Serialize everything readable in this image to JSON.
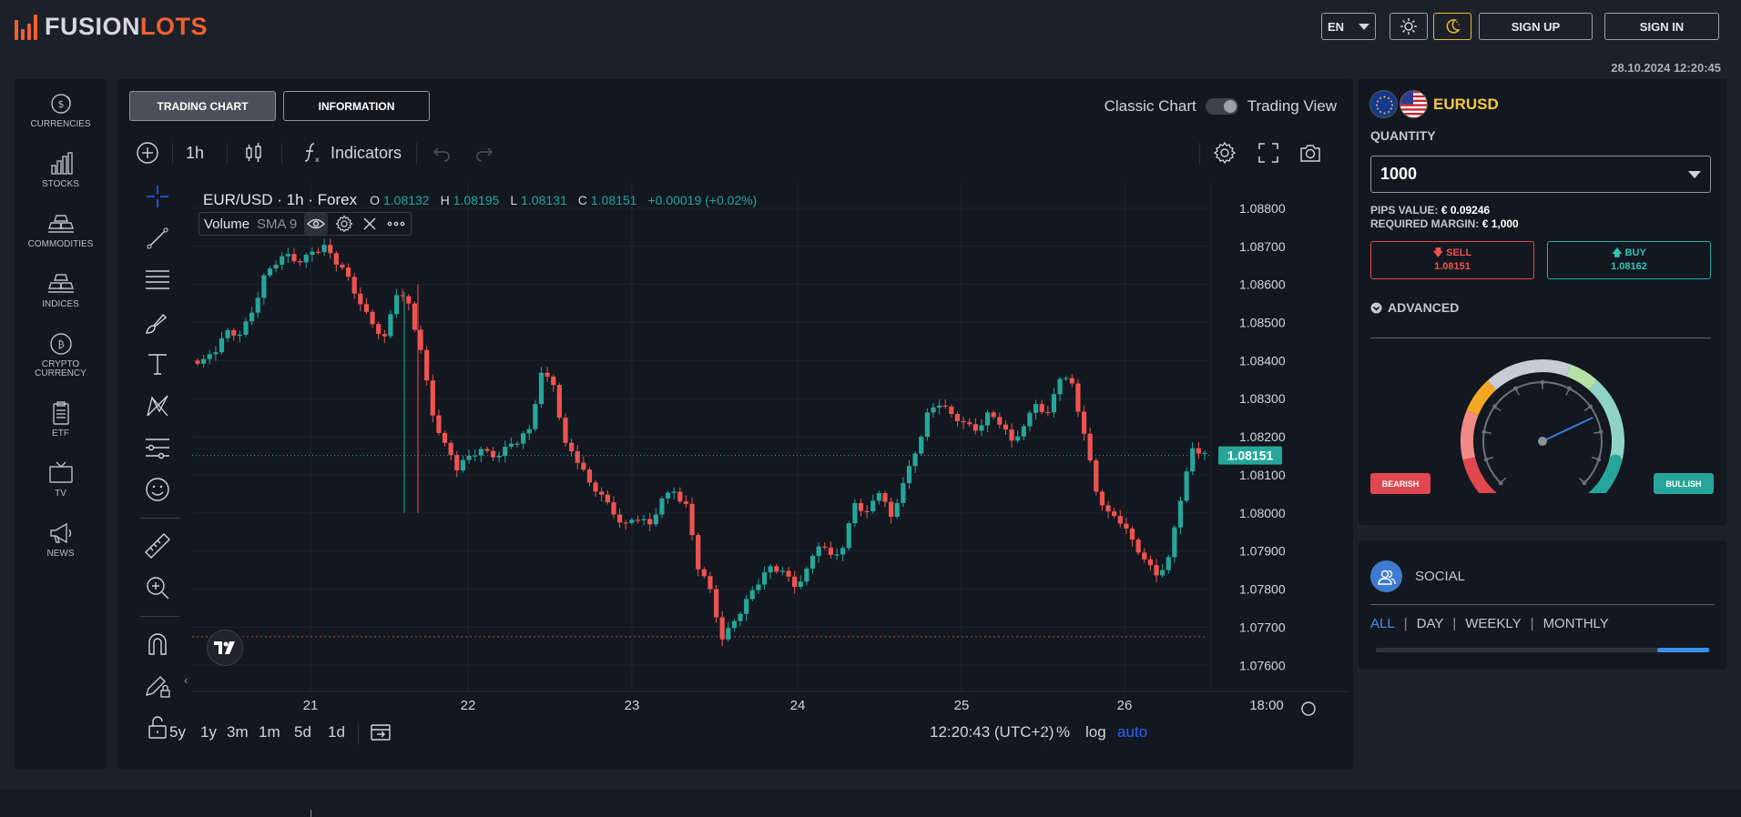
{
  "brand": {
    "part1": "FUSION",
    "part2": "LOTS"
  },
  "header": {
    "language": "EN",
    "sign_up": "SIGN UP",
    "sign_in": "SIGN IN",
    "datetime": "28.10.2024 12:20:45"
  },
  "nav": [
    {
      "label": "CURRENCIES",
      "icon": "currency-coin-icon"
    },
    {
      "label": "STOCKS",
      "icon": "bar-chart-icon"
    },
    {
      "label": "COMMODITIES",
      "icon": "gold-bars-icon"
    },
    {
      "label": "INDICES",
      "icon": "stacked-bars-icon"
    },
    {
      "label": "CRYPTO CURRENCY",
      "icon": "bitcoin-icon"
    },
    {
      "label": "ETF",
      "icon": "clipboard-icon"
    },
    {
      "label": "TV",
      "icon": "tv-icon"
    },
    {
      "label": "NEWS",
      "icon": "megaphone-icon"
    }
  ],
  "tabs": {
    "trading_chart": "TRADING CHART",
    "information": "INFORMATION"
  },
  "view_toggle": {
    "left": "Classic Chart",
    "right": "Trading View"
  },
  "toolbar": {
    "interval": "1h",
    "indicators": "Indicators"
  },
  "legend": {
    "symbol": "EUR/USD · 1h · Forex",
    "o_label": "O",
    "o": "1.08132",
    "h_label": "H",
    "h": "1.08195",
    "l_label": "L",
    "l": "1.08131",
    "c_label": "C",
    "c": "1.08151",
    "change": "+0.00019 (+0.02%)",
    "volume_label": "Volume",
    "volume_sma": "SMA 9"
  },
  "chart_data": {
    "type": "candlestick",
    "symbol": "EUR/USD",
    "interval": "1h",
    "y_ticks": [
      "1.08800",
      "1.08700",
      "1.08600",
      "1.08500",
      "1.08400",
      "1.08300",
      "1.08200",
      "1.08100",
      "1.08000",
      "1.07900",
      "1.07800",
      "1.07700",
      "1.07600"
    ],
    "ylim": [
      1.0756,
      1.0885
    ],
    "x_ticks": [
      "21",
      "22",
      "23",
      "24",
      "25",
      "26",
      "18:00"
    ],
    "last_price": "1.08151",
    "last_price_value": 1.08151,
    "low_line_value": 1.07675,
    "close_path": [
      1.084,
      1.0843,
      1.0848,
      1.0846,
      1.0853,
      1.0862,
      1.0866,
      1.0868,
      1.0865,
      1.0869,
      1.087,
      1.0866,
      1.0862,
      1.0854,
      1.085,
      1.0846,
      1.0858,
      1.0855,
      1.0842,
      1.0826,
      1.0818,
      1.0812,
      1.0815,
      1.0816,
      1.0815,
      1.0817,
      1.0819,
      1.0822,
      1.0836,
      1.0834,
      1.0818,
      1.0814,
      1.0808,
      1.0804,
      1.08,
      1.0797,
      1.0799,
      1.0797,
      1.0803,
      1.0806,
      1.0802,
      1.0786,
      1.078,
      1.0766,
      1.0772,
      1.0777,
      1.0782,
      1.0786,
      1.0784,
      1.0781,
      1.0785,
      1.0792,
      1.0789,
      1.079,
      1.0803,
      1.08,
      1.0806,
      1.0799,
      1.0807,
      1.0816,
      1.0826,
      1.0829,
      1.0826,
      1.0823,
      1.0822,
      1.0826,
      1.0824,
      1.0819,
      1.0822,
      1.0829,
      1.0826,
      1.0836,
      1.0834,
      1.082,
      1.0806,
      1.08,
      1.0798,
      1.0793,
      1.0787,
      1.0784,
      1.0788,
      1.0804,
      1.0817,
      1.0815
    ]
  },
  "ranges": [
    "5y",
    "1y",
    "3m",
    "1m",
    "5d",
    "1d"
  ],
  "bottom": {
    "time": "12:20:43 (UTC+2)",
    "pct": "%",
    "log": "log",
    "auto": "auto"
  },
  "instrument": {
    "pair": "EURUSD",
    "quantity_label": "QUANTITY",
    "quantity": "1000",
    "pips_label": "PIPS VALUE:",
    "pips_value": "€ 0.09246",
    "margin_label": "REQUIRED MARGIN:",
    "margin_value": "€ 1,000",
    "sell_label": "SELL",
    "sell_price": "1.08151",
    "buy_label": "BUY",
    "buy_price": "1.08162",
    "advanced": "ADVANCED",
    "bearish": "BEARISH",
    "bullish": "BULLISH",
    "sentiment_needle_fraction": 0.74
  },
  "social": {
    "title": "SOCIAL",
    "tabs": [
      "ALL",
      "DAY",
      "WEEKLY",
      "MONTHLY"
    ],
    "active_tab": "ALL",
    "bar_fraction": 0.155
  },
  "colors": {
    "up": "#26a69a",
    "down": "#ef5350",
    "accent": "#f0612f",
    "link": "#4a90e2"
  }
}
